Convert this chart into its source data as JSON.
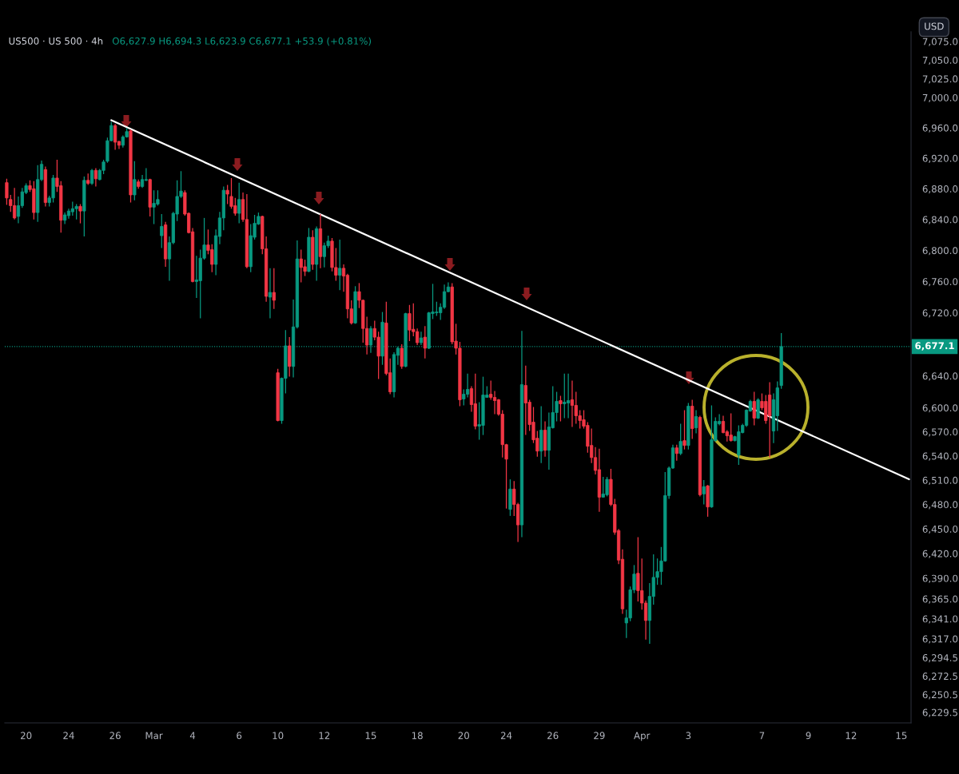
{
  "chart_data": {
    "type": "candlestick",
    "title": "US500 · US 500 · 4h",
    "annotations": [
      "O6,627.9 H6,694.3 L6,623.9 C6,677.1 +53.9 (+0.81%)",
      "USD"
    ],
    "categories": [
      null,
      null,
      null,
      null,
      null,
      "20",
      null,
      null,
      null,
      null,
      null,
      null,
      null,
      null,
      null,
      null,
      "24",
      null,
      null,
      null,
      null,
      null,
      null,
      null,
      null,
      null,
      null,
      null,
      "26",
      null,
      null,
      null,
      null,
      null,
      null,
      null,
      null,
      null,
      "Mar",
      null,
      null,
      null,
      null,
      null,
      null,
      null,
      null,
      null,
      "4",
      null,
      null,
      null,
      null,
      null,
      null,
      null,
      null,
      null,
      null,
      null,
      "6",
      null,
      null,
      null,
      null,
      null,
      null,
      null,
      null,
      null,
      "10",
      null,
      null,
      null,
      null,
      null,
      null,
      null,
      null,
      null,
      null,
      null,
      "12",
      null,
      null,
      null,
      null,
      null,
      null,
      null,
      null,
      null,
      null,
      null,
      "15",
      null,
      null,
      null,
      null,
      null,
      null,
      null,
      null,
      null,
      null,
      null,
      "18",
      null,
      null,
      null,
      null,
      null,
      null,
      null,
      null,
      null,
      null,
      null,
      "20",
      null,
      null,
      null,
      null,
      null,
      null,
      null,
      null,
      null,
      null,
      "24",
      null,
      null,
      null,
      null,
      null,
      null,
      null,
      null,
      null,
      null,
      null,
      "26",
      null,
      null,
      null,
      null,
      null,
      null,
      null,
      null,
      null,
      null,
      null,
      "29",
      null,
      null,
      null,
      null,
      null,
      null,
      null,
      null,
      null,
      null,
      "Apr",
      null,
      null,
      null,
      null,
      null,
      null,
      null,
      null,
      null,
      null,
      null,
      "3",
      null,
      null,
      null,
      null,
      null,
      null,
      null,
      null,
      null,
      null,
      null,
      null,
      null,
      null,
      null,
      null,
      null,
      null,
      "7",
      null,
      null,
      null,
      null,
      null,
      null,
      null,
      null,
      null,
      null,
      null,
      "9",
      null,
      null,
      null,
      null,
      null,
      null,
      null,
      null,
      null,
      null,
      "12",
      null,
      null,
      null,
      null,
      null,
      null,
      null,
      null,
      null,
      null,
      null,
      null,
      "15",
      null,
      null
    ],
    "ohlc": [
      [
        6888,
        6893,
        6859,
        6868
      ],
      [
        6866,
        6872,
        6850,
        6858
      ],
      [
        6858,
        6881,
        6840,
        6842
      ],
      [
        6844,
        6870,
        6835,
        6858
      ],
      [
        6858,
        6881,
        6855,
        6876
      ],
      [
        6875,
        6887,
        6873,
        6884
      ],
      [
        6884,
        6891,
        6876,
        6879
      ],
      [
        6880,
        6890,
        6840,
        6849
      ],
      [
        6849,
        6911,
        6837,
        6892
      ],
      [
        6892,
        6917,
        6890,
        6912
      ],
      [
        6905,
        6909,
        6857,
        6862
      ],
      [
        6862,
        6871,
        6857,
        6868
      ],
      [
        6868,
        6898,
        6862,
        6894
      ],
      [
        6894,
        6918,
        6876,
        6883
      ],
      [
        6884,
        6890,
        6823,
        6839
      ],
      [
        6839,
        6849,
        6834,
        6846
      ],
      [
        6845,
        6854,
        6841,
        6851
      ],
      [
        6850,
        6863,
        6845,
        6854
      ],
      [
        6854,
        6860,
        6840,
        6857
      ],
      [
        6857,
        6860,
        6835,
        6851
      ],
      [
        6851,
        6896,
        6818,
        6891
      ],
      [
        6891,
        6900,
        6885,
        6887
      ],
      [
        6887,
        6906,
        6885,
        6904
      ],
      [
        6904,
        6907,
        6883,
        6893
      ],
      [
        6892,
        6906,
        6891,
        6904
      ],
      [
        6904,
        6918,
        6899,
        6915
      ],
      [
        6916,
        6947,
        6914,
        6943
      ],
      [
        6943,
        6968,
        6942,
        6963
      ],
      [
        6963,
        6965,
        6931,
        6941
      ],
      [
        6942,
        6943,
        6932,
        6937
      ],
      [
        6937,
        6950,
        6934,
        6948
      ],
      [
        6948,
        6960,
        6947,
        6955
      ],
      [
        6956,
        6958,
        6862,
        6872
      ],
      [
        6872,
        6916,
        6865,
        6892
      ],
      [
        6889,
        6892,
        6880,
        6883
      ],
      [
        6883,
        6898,
        6881,
        6892
      ],
      [
        6891,
        6907,
        6890,
        6892
      ],
      [
        6892,
        6893,
        6844,
        6856
      ],
      [
        6856,
        6878,
        6834,
        6861
      ],
      [
        6860,
        6878,
        6858,
        6866
      ],
      [
        6819,
        6847,
        6803,
        6831
      ],
      [
        6833,
        6837,
        6779,
        6789
      ],
      [
        6789,
        6818,
        6761,
        6810
      ],
      [
        6810,
        6850,
        6808,
        6848
      ],
      [
        6847,
        6891,
        6838,
        6870
      ],
      [
        6870,
        6903,
        6868,
        6877
      ],
      [
        6875,
        6878,
        6845,
        6847
      ],
      [
        6848,
        6849,
        6822,
        6823
      ],
      [
        6824,
        6829,
        6759,
        6760
      ],
      [
        6760,
        6793,
        6739,
        6762
      ],
      [
        6761,
        6801,
        6713,
        6790
      ],
      [
        6790,
        6842,
        6788,
        6807
      ],
      [
        6807,
        6827,
        6795,
        6800
      ],
      [
        6801,
        6808,
        6772,
        6782
      ],
      [
        6782,
        6827,
        6768,
        6819
      ],
      [
        6818,
        6850,
        6808,
        6842
      ],
      [
        6842,
        6883,
        6826,
        6878
      ],
      [
        6878,
        6885,
        6860,
        6873
      ],
      [
        6870,
        6894,
        6854,
        6857
      ],
      [
        6858,
        6868,
        6845,
        6848
      ],
      [
        6848,
        6888,
        6835,
        6866
      ],
      [
        6866,
        6875,
        6837,
        6840
      ],
      [
        6840,
        6873,
        6777,
        6779
      ],
      [
        6779,
        6834,
        6772,
        6819
      ],
      [
        6817,
        6846,
        6814,
        6835
      ],
      [
        6834,
        6849,
        6833,
        6844
      ],
      [
        6844,
        6845,
        6795,
        6802
      ],
      [
        6802,
        6818,
        6734,
        6741
      ],
      [
        6740,
        6777,
        6713,
        6746
      ],
      [
        6746,
        6777,
        6725,
        6736
      ],
      [
        6644,
        6649,
        6583,
        6584
      ],
      [
        6584,
        6638,
        6580,
        6637
      ],
      [
        6637,
        6698,
        6618,
        6678
      ],
      [
        6678,
        6689,
        6639,
        6652
      ],
      [
        6652,
        6737,
        6638,
        6702
      ],
      [
        6702,
        6813,
        6700,
        6789
      ],
      [
        6789,
        6801,
        6759,
        6778
      ],
      [
        6779,
        6788,
        6767,
        6773
      ],
      [
        6773,
        6829,
        6772,
        6817
      ],
      [
        6817,
        6826,
        6775,
        6782
      ],
      [
        6782,
        6831,
        6761,
        6828
      ],
      [
        6828,
        6847,
        6777,
        6792
      ],
      [
        6792,
        6810,
        6778,
        6806
      ],
      [
        6806,
        6819,
        6803,
        6812
      ],
      [
        6812,
        6816,
        6773,
        6778
      ],
      [
        6778,
        6803,
        6761,
        6768
      ],
      [
        6768,
        6814,
        6749,
        6777
      ],
      [
        6777,
        6782,
        6747,
        6767
      ],
      [
        6768,
        6770,
        6713,
        6725
      ],
      [
        6725,
        6736,
        6705,
        6707
      ],
      [
        6707,
        6754,
        6706,
        6747
      ],
      [
        6747,
        6758,
        6726,
        6736
      ],
      [
        6736,
        6737,
        6682,
        6700
      ],
      [
        6700,
        6715,
        6667,
        6679
      ],
      [
        6679,
        6703,
        6669,
        6700
      ],
      [
        6700,
        6710,
        6685,
        6689
      ],
      [
        6689,
        6696,
        6636,
        6665
      ],
      [
        6665,
        6721,
        6654,
        6708
      ],
      [
        6707,
        6734,
        6641,
        6643
      ],
      [
        6644,
        6662,
        6617,
        6620
      ],
      [
        6620,
        6670,
        6613,
        6667
      ],
      [
        6666,
        6677,
        6654,
        6675
      ],
      [
        6675,
        6680,
        6649,
        6652
      ],
      [
        6652,
        6720,
        6651,
        6719
      ],
      [
        6719,
        6730,
        6684,
        6698
      ],
      [
        6699,
        6732,
        6690,
        6696
      ],
      [
        6696,
        6700,
        6679,
        6682
      ],
      [
        6682,
        6696,
        6679,
        6688
      ],
      [
        6689,
        6703,
        6662,
        6675
      ],
      [
        6675,
        6721,
        6674,
        6720
      ],
      [
        6719,
        6757,
        6712,
        6721
      ],
      [
        6720,
        6734,
        6716,
        6721
      ],
      [
        6720,
        6732,
        6711,
        6727
      ],
      [
        6727,
        6756,
        6725,
        6747
      ],
      [
        6747,
        6759,
        6746,
        6753
      ],
      [
        6753,
        6758,
        6680,
        6683
      ],
      [
        6684,
        6706,
        6667,
        6675
      ],
      [
        6675,
        6683,
        6602,
        6610
      ],
      [
        6611,
        6623,
        6603,
        6617
      ],
      [
        6617,
        6643,
        6613,
        6623
      ],
      [
        6624,
        6627,
        6595,
        6604
      ],
      [
        6605,
        6643,
        6573,
        6577
      ],
      [
        6577,
        6607,
        6560,
        6579
      ],
      [
        6578,
        6639,
        6566,
        6616
      ],
      [
        6613,
        6627,
        6613,
        6616
      ],
      [
        6617,
        6634,
        6610,
        6613
      ],
      [
        6613,
        6621,
        6592,
        6609
      ],
      [
        6610,
        6611,
        6590,
        6592
      ],
      [
        6592,
        6597,
        6538,
        6554
      ],
      [
        6554,
        6555,
        6475,
        6536
      ],
      [
        6474,
        6511,
        6466,
        6499
      ],
      [
        6499,
        6509,
        6466,
        6480
      ],
      [
        6480,
        6482,
        6434,
        6455
      ],
      [
        6455,
        6697,
        6440,
        6629
      ],
      [
        6628,
        6653,
        6566,
        6606
      ],
      [
        6607,
        6610,
        6571,
        6579
      ],
      [
        6582,
        6601,
        6556,
        6560
      ],
      [
        6562,
        6571,
        6539,
        6546
      ],
      [
        6546,
        6602,
        6531,
        6572
      ],
      [
        6572,
        6583,
        6539,
        6547
      ],
      [
        6547,
        6594,
        6523,
        6576
      ],
      [
        6575,
        6627,
        6574,
        6594
      ],
      [
        6594,
        6620,
        6583,
        6608
      ],
      [
        6609,
        6615,
        6583,
        6605
      ],
      [
        6605,
        6643,
        6587,
        6607
      ],
      [
        6606,
        6643,
        6587,
        6609
      ],
      [
        6610,
        6634,
        6576,
        6603
      ],
      [
        6603,
        6620,
        6580,
        6590
      ],
      [
        6590,
        6597,
        6574,
        6584
      ],
      [
        6585,
        6597,
        6574,
        6577
      ],
      [
        6578,
        6582,
        6544,
        6552
      ],
      [
        6553,
        6574,
        6531,
        6538
      ],
      [
        6538,
        6551,
        6517,
        6522
      ],
      [
        6523,
        6549,
        6471,
        6489
      ],
      [
        6489,
        6514,
        6489,
        6493
      ],
      [
        6492,
        6514,
        6490,
        6511
      ],
      [
        6511,
        6524,
        6478,
        6480
      ],
      [
        6480,
        6487,
        6443,
        6446
      ],
      [
        6448,
        6450,
        6407,
        6412
      ],
      [
        6413,
        6425,
        6347,
        6353
      ],
      [
        6336,
        6352,
        6318,
        6342
      ],
      [
        6342,
        6380,
        6338,
        6376
      ],
      [
        6376,
        6406,
        6372,
        6395
      ],
      [
        6396,
        6440,
        6362,
        6375
      ],
      [
        6375,
        6414,
        6352,
        6360
      ],
      [
        6360,
        6363,
        6316,
        6339
      ],
      [
        6339,
        6384,
        6311,
        6368
      ],
      [
        6368,
        6419,
        6358,
        6391
      ],
      [
        6391,
        6414,
        6382,
        6398
      ],
      [
        6398,
        6428,
        6382,
        6411
      ],
      [
        6411,
        6520,
        6410,
        6491
      ],
      [
        6491,
        6527,
        6487,
        6525
      ],
      [
        6525,
        6554,
        6524,
        6550
      ],
      [
        6550,
        6554,
        6534,
        6543
      ],
      [
        6543,
        6580,
        6541,
        6558
      ],
      [
        6559,
        6597,
        6548,
        6553
      ],
      [
        6553,
        6606,
        6548,
        6602
      ],
      [
        6602,
        6610,
        6561,
        6574
      ],
      [
        6575,
        6597,
        6568,
        6589
      ],
      [
        6588,
        6590,
        6490,
        6492
      ],
      [
        6493,
        6510,
        6480,
        6502
      ],
      [
        6503,
        6504,
        6465,
        6477
      ],
      [
        6477,
        6603,
        6476,
        6560
      ],
      [
        6559,
        6588,
        6558,
        6583
      ],
      [
        6580,
        6592,
        6578,
        6583
      ],
      [
        6583,
        6590,
        6568,
        6569
      ],
      [
        6570,
        6572,
        6558,
        6565
      ],
      [
        6566,
        6593,
        6558,
        6559
      ],
      [
        6559,
        6565,
        6558,
        6564
      ],
      [
        6541,
        6578,
        6529,
        6570
      ],
      [
        6569,
        6580,
        6568,
        6578
      ],
      [
        6578,
        6598,
        6576,
        6597
      ],
      [
        6596,
        6610,
        6595,
        6608
      ],
      [
        6608,
        6620,
        6578,
        6587
      ],
      [
        6587,
        6612,
        6586,
        6610
      ],
      [
        6608,
        6618,
        6597,
        6600
      ],
      [
        6608,
        6616,
        6580,
        6584
      ],
      [
        6616,
        6632,
        6538,
        6590
      ],
      [
        6571,
        6618,
        6556,
        6610
      ],
      [
        6590,
        6633,
        6571,
        6625
      ],
      [
        6627.9,
        6694.3,
        6623.9,
        6677.1
      ],
      null,
      null,
      null,
      null,
      null,
      null,
      null,
      null,
      null,
      null,
      null,
      null,
      null,
      null,
      null,
      null,
      null,
      null,
      null,
      null,
      null,
      null,
      null,
      null,
      null,
      null,
      null,
      null,
      null,
      null,
      null,
      null,
      null
    ],
    "colors": [
      "#f23645",
      "#f23645",
      "#f23645",
      "#089981",
      "#089981",
      "#089981",
      "#f23645",
      "#f23645",
      "#089981",
      "#089981",
      "#f23645",
      "#089981",
      "#089981",
      "#f23645",
      "#f23645",
      "#089981",
      "#089981",
      "#089981",
      "#089981",
      "#f23645",
      "#089981",
      "#f23645",
      "#089981",
      "#f23645",
      "#089981",
      "#089981",
      "#089981",
      "#089981",
      "#f23645",
      "#f23645",
      "#089981",
      "#089981",
      "#f23645",
      "#089981",
      "#f23645",
      "#089981",
      "#089981",
      "#f23645",
      "#089981",
      "#089981",
      "#089981",
      "#f23645",
      "#089981",
      "#089981",
      "#089981",
      "#089981",
      "#f23645",
      "#f23645",
      "#f23645",
      "#089981",
      "#089981",
      "#089981",
      "#f23645",
      "#f23645",
      "#089981",
      "#089981",
      "#089981",
      "#f23645",
      "#f23645",
      "#f23645",
      "#089981",
      "#f23645",
      "#f23645",
      "#089981",
      "#089981",
      "#089981",
      "#f23645",
      "#f23645",
      "#089981",
      "#f23645",
      "#f23645",
      "#089981",
      "#089981",
      "#f23645",
      "#089981",
      "#089981",
      "#f23645",
      "#f23645",
      "#089981",
      "#f23645",
      "#089981",
      "#f23645",
      "#089981",
      "#089981",
      "#f23645",
      "#f23645",
      "#089981",
      "#f23645",
      "#f23645",
      "#f23645",
      "#089981",
      "#f23645",
      "#f23645",
      "#f23645",
      "#089981",
      "#f23645",
      "#f23645",
      "#089981",
      "#f23645",
      "#f23645",
      "#089981",
      "#089981",
      "#f23645",
      "#089981",
      "#f23645",
      "#f23645",
      "#f23645",
      "#089981",
      "#f23645",
      "#089981",
      "#089981",
      "#089981",
      "#089981",
      "#089981",
      "#089981",
      "#f23645",
      "#f23645",
      "#f23645",
      "#089981",
      "#089981",
      "#f23645",
      "#f23645",
      "#089981",
      "#089981",
      "#089981",
      "#f23645",
      "#f23645",
      "#f23645",
      "#f23645",
      "#f23645",
      "#089981",
      "#f23645",
      "#f23645",
      "#089981",
      "#f23645",
      "#f23645",
      "#f23645",
      "#f23645",
      "#089981",
      "#f23645",
      "#089981",
      "#089981",
      "#089981",
      "#f23645",
      "#089981",
      "#089981",
      "#f23645",
      "#f23645",
      "#f23645",
      "#f23645",
      "#f23645",
      "#f23645",
      "#f23645",
      "#f23645",
      "#089981",
      "#089981",
      "#f23645",
      "#f23645",
      "#f23645",
      "#f23645",
      "#089981",
      "#089981",
      "#089981",
      "#f23645",
      "#f23645",
      "#f23645",
      "#089981",
      "#089981",
      "#089981",
      "#089981",
      "#089981",
      "#089981",
      "#089981",
      "#f23645",
      "#089981",
      "#f23645",
      "#089981",
      "#f23645",
      "#089981",
      "#f23645",
      "#089981",
      "#f23645",
      "#089981",
      "#089981",
      "#089981",
      "#f23645",
      "#f23645",
      "#f23645",
      "#089981",
      "#089981",
      "#089981",
      "#089981",
      "#089981",
      "#f23645",
      "#089981",
      "#f23645",
      "#f23645",
      "#f23645",
      "#089981",
      "#089981",
      "#089981",
      null,
      null,
      null,
      null,
      null,
      null,
      null,
      null,
      null,
      null,
      null,
      null,
      null,
      null,
      null,
      null,
      null,
      null,
      null,
      null,
      null,
      null,
      null,
      null,
      null,
      null,
      null,
      null,
      null,
      null,
      null,
      null,
      null
    ],
    "series": [
      {
        "type": "line",
        "values": [
          null,
          null,
          null,
          null,
          null,
          null,
          null,
          null,
          null,
          null,
          null,
          null,
          null,
          null,
          null,
          null,
          null,
          null,
          null,
          null,
          null,
          null,
          null,
          null,
          null,
          null,
          null,
          6970,
          null,
          null,
          null,
          null,
          null,
          null,
          null,
          null,
          null,
          null,
          null,
          null,
          null,
          null,
          null,
          null,
          null,
          null,
          null,
          null,
          null,
          null,
          null,
          null,
          null,
          null,
          null,
          null,
          null,
          null,
          null,
          null,
          null,
          null,
          null,
          null,
          null,
          null,
          null,
          null,
          null,
          null,
          null,
          null,
          null,
          null,
          null,
          null,
          null,
          null,
          null,
          null,
          null,
          null,
          null,
          null,
          null,
          null,
          null,
          null,
          null,
          null,
          null,
          null,
          null,
          null,
          null,
          null,
          null,
          null,
          null,
          null,
          null,
          null,
          null,
          null,
          null,
          null,
          null,
          null,
          null,
          null,
          null,
          null,
          null,
          null,
          null,
          null,
          null,
          null,
          null,
          null,
          null,
          null,
          null,
          null,
          null,
          null,
          null,
          null,
          null,
          null,
          null,
          null,
          null,
          null,
          null,
          null,
          null,
          null,
          null,
          null,
          null,
          null,
          null,
          null,
          null,
          null,
          null,
          null,
          null,
          null,
          null,
          null,
          null,
          null,
          null,
          null,
          null,
          null,
          null,
          null,
          null,
          null,
          null,
          null,
          null,
          null,
          null,
          null,
          null,
          null,
          null,
          null,
          null,
          null,
          null,
          null,
          null,
          null,
          null,
          null,
          null,
          null,
          null,
          null,
          null,
          null,
          null,
          null,
          null,
          null,
          null,
          null,
          null,
          null,
          null,
          null,
          null,
          null,
          null,
          null,
          null,
          null,
          null,
          null,
          null,
          null,
          null,
          null,
          null,
          null,
          null,
          null,
          null,
          null,
          null,
          null,
          null,
          null,
          null,
          null,
          null,
          null,
          null,
          null,
          null,
          null,
          null,
          null,
          null,
          null,
          null,
          null,
          null,
          6511
        ],
        "color": "#ffffff"
      }
    ],
    "ref_lines": [
      {
        "axis": "y",
        "value": 6677.1,
        "label": "6,677.1",
        "color": "#089981",
        "line_style": "dotted"
      }
    ],
    "log": true,
    "ylim": [
      6217,
      7088
    ],
    "yticks": [
      {
        "value": 7075,
        "label": "7,075.0"
      },
      {
        "value": 7050,
        "label": "7,050.0"
      },
      {
        "value": 7025,
        "label": "7,025.0"
      },
      {
        "value": 7000,
        "label": "7,000.0"
      },
      {
        "value": 6960,
        "label": "6,960.0"
      },
      {
        "value": 6920,
        "label": "6,920.0"
      },
      {
        "value": 6880,
        "label": "6,880.0"
      },
      {
        "value": 6840,
        "label": "6,840.0"
      },
      {
        "value": 6800,
        "label": "6,800.0"
      },
      {
        "value": 6760,
        "label": "6,760.0"
      },
      {
        "value": 6720,
        "label": "6,720.0"
      },
      {
        "value": 6640,
        "label": "6,640.0"
      },
      {
        "value": 6600,
        "label": "6,600.0"
      },
      {
        "value": 6570,
        "label": "6,570.0"
      },
      {
        "value": 6540,
        "label": "6,540.0"
      },
      {
        "value": 6510,
        "label": "6,510.0"
      },
      {
        "value": 6480,
        "label": "6,480.0"
      },
      {
        "value": 6450,
        "label": "6,450.0"
      },
      {
        "value": 6420,
        "label": "6,420.0"
      },
      {
        "value": 6390,
        "label": "6,390.0"
      },
      {
        "value": 6365,
        "label": "6,365.0"
      },
      {
        "value": 6341,
        "label": "6,341.0"
      },
      {
        "value": 6317,
        "label": "6,317.0"
      },
      {
        "value": 6294.5,
        "label": "6,294.5"
      },
      {
        "value": 6272.5,
        "label": "6,272.5"
      },
      {
        "value": 6250.5,
        "label": "6,250.5"
      },
      {
        "value": 6229.5,
        "label": "6,229.5"
      }
    ]
  }
}
